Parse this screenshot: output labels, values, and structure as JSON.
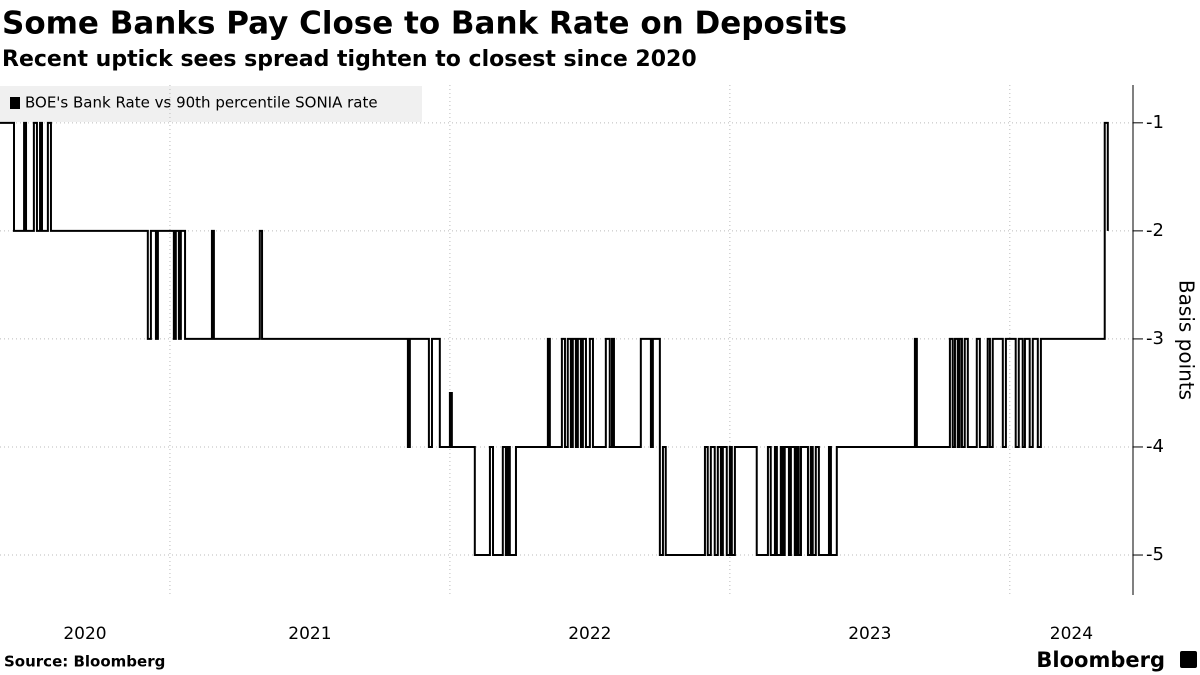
{
  "chart_data": {
    "type": "line",
    "step": true,
    "title": "Some Banks Pay Close to Bank Rate on Deposits",
    "subtitle": "Recent uptick sees spread tighten to closest since 2020",
    "ylabel": "Basis points",
    "source": "Source: Bloomberg",
    "brand": "Bloomberg",
    "legend": "top-left",
    "grid": true,
    "xlim": [
      2020.393,
      2024.44
    ],
    "xticks": [
      2020,
      2021,
      2022,
      2023,
      2024
    ],
    "ylim": [
      -5.37,
      -0.65
    ],
    "yticks": [
      -1,
      -2,
      -3,
      -4,
      -5
    ],
    "x": [
      2020.393,
      2020.443,
      2020.479,
      2020.486,
      2020.514,
      2020.525,
      2020.536,
      2020.543,
      2020.564,
      2020.575,
      2020.921,
      2020.932,
      2020.95,
      2020.957,
      2021.014,
      2021.021,
      2021.032,
      2021.039,
      2021.054,
      2021.15,
      2021.157,
      2021.321,
      2021.329,
      2021.85,
      2021.857,
      2021.925,
      2021.936,
      2021.964,
      2022.0,
      2022.007,
      2022.089,
      2022.143,
      2022.154,
      2022.189,
      2022.2,
      2022.207,
      2022.214,
      2022.236,
      2022.35,
      2022.357,
      2022.4,
      2022.411,
      2022.421,
      2022.432,
      2022.439,
      2022.45,
      2022.457,
      2022.468,
      2022.475,
      2022.486,
      2022.5,
      2022.511,
      2022.557,
      2022.571,
      2022.579,
      2022.586,
      2022.682,
      2022.718,
      2022.725,
      2022.75,
      2022.761,
      2022.771,
      2022.911,
      2022.921,
      2022.932,
      2022.946,
      2022.957,
      2022.968,
      2022.975,
      2022.989,
      2023.0,
      2023.007,
      2023.018,
      2023.096,
      2023.136,
      2023.146,
      2023.161,
      2023.168,
      2023.182,
      2023.189,
      2023.196,
      2023.211,
      2023.218,
      2023.232,
      2023.239,
      2023.246,
      2023.254,
      2023.279,
      2023.289,
      2023.296,
      2023.307,
      2023.318,
      2023.354,
      2023.361,
      2023.382,
      2023.661,
      2023.668,
      2023.786,
      2023.796,
      2023.804,
      2023.814,
      2023.821,
      2023.829,
      2023.839,
      2023.85,
      2023.882,
      2023.893,
      2023.921,
      2023.929,
      2023.939,
      2023.975,
      2023.986,
      2024.021,
      2024.032,
      2024.046,
      2024.054,
      2024.071,
      2024.082,
      2024.1,
      2024.111,
      2024.339,
      2024.35
    ],
    "series": [
      {
        "name": "BOE's Bank Rate vs 90th percentile SONIA rate",
        "color": "#000000",
        "values": [
          -1,
          -2,
          -1,
          -2,
          -1,
          -2,
          -1,
          -2,
          -1,
          -2,
          -3,
          -2,
          -3,
          -2,
          -3,
          -2,
          -3,
          -2,
          -3,
          -2,
          -3,
          -2,
          -3,
          -4,
          -3,
          -4,
          -3,
          -4,
          -3.5,
          -4,
          -5,
          -4,
          -5,
          -4,
          -5,
          -4,
          -5,
          -4,
          -3,
          -4,
          -3,
          -4,
          -3,
          -4,
          -3,
          -4,
          -3,
          -4,
          -3,
          -4,
          -3,
          -4,
          -3,
          -4,
          -3,
          -4,
          -3,
          -4,
          -3,
          -5,
          -4,
          -5,
          -4,
          -5,
          -4,
          -5,
          -4,
          -5,
          -4,
          -5,
          -4,
          -5,
          -4,
          -5,
          -4,
          -5,
          -4,
          -5,
          -4,
          -5,
          -4,
          -5,
          -4,
          -5,
          -4,
          -5,
          -4,
          -5,
          -4,
          -5,
          -4,
          -5,
          -4,
          -5,
          -4,
          -3,
          -4,
          -3,
          -4,
          -3,
          -4,
          -3,
          -4,
          -3,
          -4,
          -3,
          -4,
          -3,
          -4,
          -3,
          -4,
          -3,
          -4,
          -3,
          -4,
          -3,
          -4,
          -3,
          -4,
          -3,
          -1,
          -2
        ]
      }
    ]
  }
}
